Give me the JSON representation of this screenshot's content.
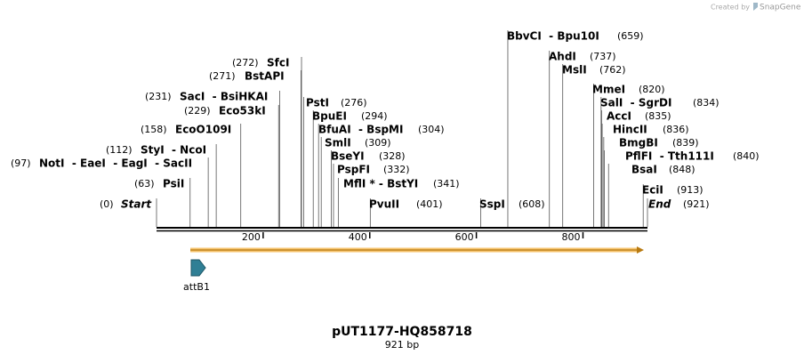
{
  "credit": {
    "prefix": "Created by",
    "brand": "SnapGene"
  },
  "title": "pUT1177-HQ858718",
  "length": "921 bp",
  "ruler": {
    "max": 921,
    "ticks": [
      200,
      400,
      600,
      800
    ]
  },
  "features": [
    {
      "name": "attB1"
    }
  ],
  "enzymes": [
    {
      "name": "Start",
      "site": {
        "value": 0,
        "label": "(0)"
      }
    },
    {
      "name": "PsiI",
      "site": {
        "value": 63,
        "label": "(63)"
      }
    },
    {
      "name": "NotI  - EaeI  - EagI  - SacII",
      "site": {
        "value": 97,
        "label": "(97)"
      }
    },
    {
      "name": "StyI  - NcoI",
      "site": {
        "value": 112,
        "label": "(112)"
      }
    },
    {
      "name": "EcoO109I",
      "site": {
        "value": 158,
        "label": "(158)"
      }
    },
    {
      "name": "Eco53kI",
      "site": {
        "value": 229,
        "label": "(229)"
      }
    },
    {
      "name": "SacI  - BsiHKAI",
      "site": {
        "value": 231,
        "label": "(231)"
      }
    },
    {
      "name": "BstAPI",
      "site": {
        "value": 271,
        "label": "(271)"
      }
    },
    {
      "name": "SfcI",
      "site": {
        "value": 272,
        "label": "(272)"
      }
    },
    {
      "name": "PstI",
      "site": {
        "value": 276,
        "label": "(276)"
      }
    },
    {
      "name": "BpuEI",
      "site": {
        "value": 294,
        "label": "(294)"
      }
    },
    {
      "name": "BfuAI  - BspMI",
      "site": {
        "value": 304,
        "label": "(304)"
      }
    },
    {
      "name": "SmlI",
      "site": {
        "value": 309,
        "label": "(309)"
      }
    },
    {
      "name": "BseYI",
      "site": {
        "value": 328,
        "label": "(328)"
      }
    },
    {
      "name": "PspFI",
      "site": {
        "value": 332,
        "label": "(332)"
      }
    },
    {
      "name": "MflI * - BstYI",
      "site": {
        "value": 341,
        "label": "(341)"
      }
    },
    {
      "name": "PvuII",
      "site": {
        "value": 401,
        "label": "(401)"
      }
    },
    {
      "name": "SspI",
      "site": {
        "value": 608,
        "label": "(608)"
      }
    },
    {
      "name": "BbvCI  - Bpu10I",
      "site": {
        "value": 659,
        "label": "(659)"
      }
    },
    {
      "name": "AhdI",
      "site": {
        "value": 737,
        "label": "(737)"
      }
    },
    {
      "name": "MslI",
      "site": {
        "value": 762,
        "label": "(762)"
      }
    },
    {
      "name": "MmeI",
      "site": {
        "value": 820,
        "label": "(820)"
      }
    },
    {
      "name": "SalI  - SgrDI",
      "site": {
        "value": 834,
        "label": "(834)"
      }
    },
    {
      "name": "AccI",
      "site": {
        "value": 835,
        "label": "(835)"
      }
    },
    {
      "name": "HincII",
      "site": {
        "value": 836,
        "label": "(836)"
      }
    },
    {
      "name": "BmgBI",
      "site": {
        "value": 839,
        "label": "(839)"
      }
    },
    {
      "name": "PflFI  - Tth111I",
      "site": {
        "value": 840,
        "label": "(840)"
      }
    },
    {
      "name": "BsaI",
      "site": {
        "value": 848,
        "label": "(848)"
      }
    },
    {
      "name": "EciI",
      "site": {
        "value": 913,
        "label": "(913)"
      }
    },
    {
      "name": "End",
      "site": {
        "value": 921,
        "label": "(921)"
      }
    }
  ]
}
